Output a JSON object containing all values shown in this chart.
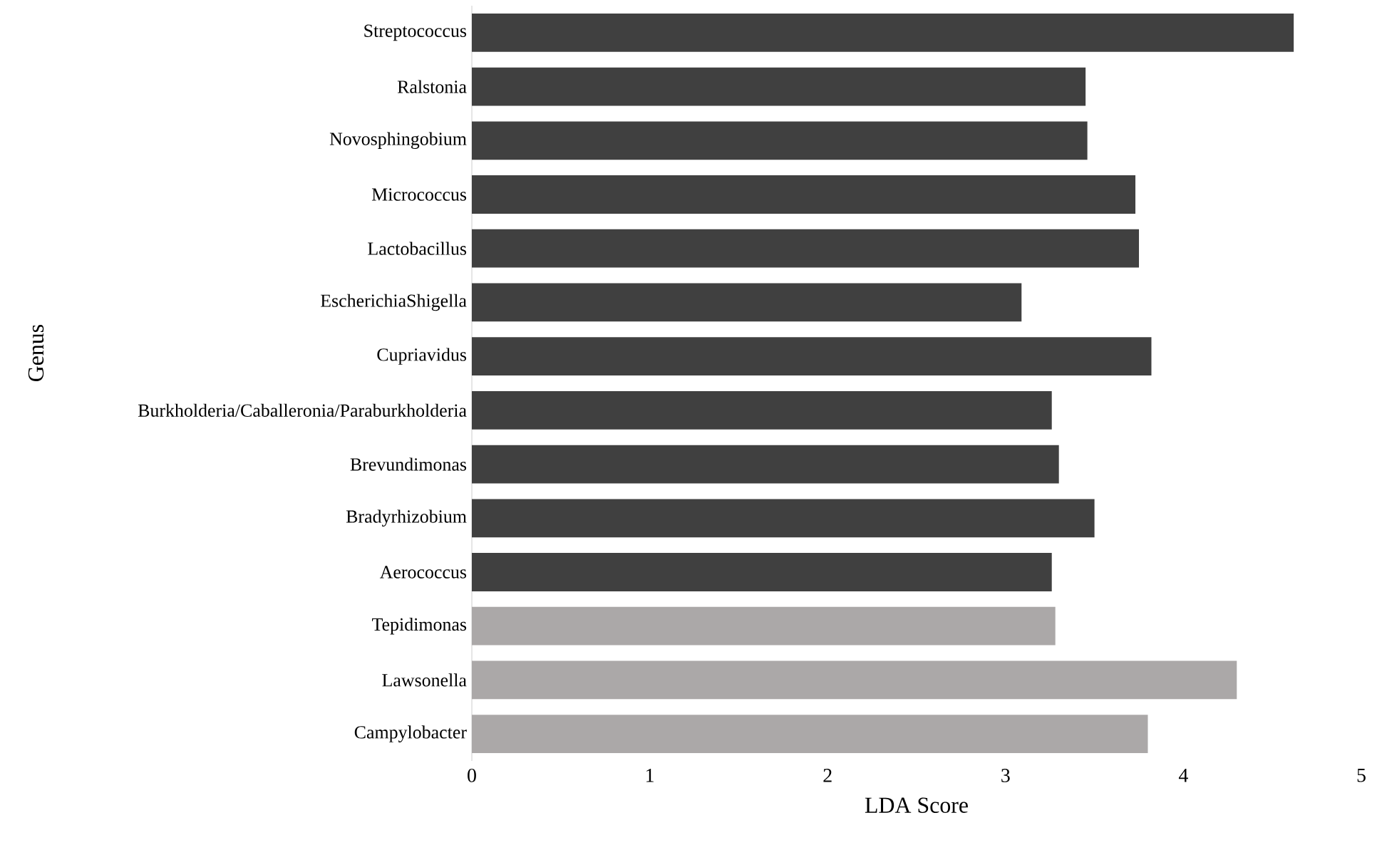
{
  "chart_data": {
    "type": "bar",
    "orientation": "horizontal",
    "xlabel": "LDA Score",
    "ylabel": "Genus",
    "categories": [
      "Streptococcus",
      "Ralstonia",
      "Novosphingobium",
      "Micrococcus",
      "Lactobacillus",
      "EscherichiaShigella",
      "Cupriavidus",
      "Burkholderia/Caballeronia/Paraburkholderia",
      "Brevundimonas",
      "Bradyrhizobium",
      "Aerococcus",
      "Tepidimonas",
      "Lawsonella",
      "Campylobacter"
    ],
    "values": [
      4.62,
      3.45,
      3.46,
      3.73,
      3.75,
      3.09,
      3.82,
      3.26,
      3.3,
      3.5,
      3.26,
      3.28,
      4.3,
      3.8
    ],
    "colors": [
      "#404040",
      "#404040",
      "#404040",
      "#404040",
      "#404040",
      "#404040",
      "#404040",
      "#404040",
      "#404040",
      "#404040",
      "#404040",
      "#aba8a8",
      "#aba8a8",
      "#aba8a8"
    ],
    "xlim": [
      0,
      5
    ],
    "xticks": [
      0,
      1,
      2,
      3,
      4,
      5
    ]
  }
}
